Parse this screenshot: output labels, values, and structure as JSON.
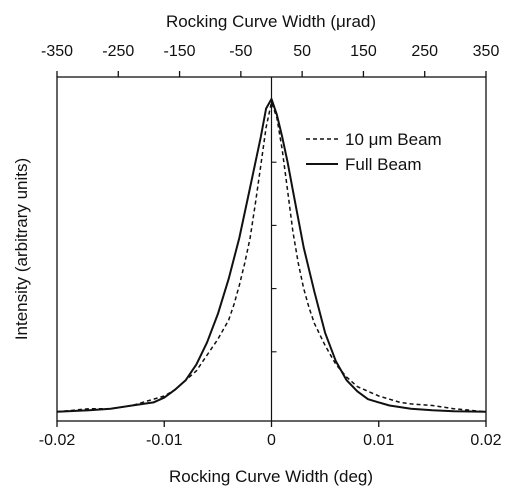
{
  "chart_data": {
    "type": "line",
    "title": "",
    "xlabel": "Rocking Curve Width (deg)",
    "ylabel": "Intensity (arbitrary units)",
    "x2label": "Rocking Curve Width (μrad)",
    "xlim": [
      -0.02,
      0.02
    ],
    "ylim": [
      0,
      1
    ],
    "x2lim": [
      -350,
      350
    ],
    "xticks": [
      "-0.02",
      "-0.01",
      "0",
      "0.01",
      "0.02"
    ],
    "x2ticks": [
      "-350",
      "-250",
      "-150",
      "-50",
      "50",
      "150",
      "250",
      "350"
    ],
    "grid": false,
    "legend_position": "top-right",
    "series": [
      {
        "name": "10 μm Beam",
        "style": "dashed",
        "x": [
          -0.02,
          -0.017,
          -0.015,
          -0.013,
          -0.011,
          -0.01,
          -0.009,
          -0.008,
          -0.007,
          -0.006,
          -0.005,
          -0.0045,
          -0.004,
          -0.0035,
          -0.003,
          -0.0025,
          -0.002,
          -0.0015,
          -0.001,
          -0.0005,
          0,
          0.0005,
          0.001,
          0.0015,
          0.002,
          0.0025,
          0.003,
          0.0035,
          0.004,
          0.005,
          0.006,
          0.007,
          0.008,
          0.009,
          0.01,
          0.011,
          0.012,
          0.013,
          0.015,
          0.017,
          0.02
        ],
        "y": [
          0.01,
          0.02,
          0.02,
          0.03,
          0.05,
          0.06,
          0.08,
          0.11,
          0.14,
          0.19,
          0.24,
          0.27,
          0.3,
          0.35,
          0.41,
          0.48,
          0.56,
          0.67,
          0.79,
          0.91,
          0.99,
          0.94,
          0.84,
          0.71,
          0.58,
          0.48,
          0.4,
          0.34,
          0.29,
          0.22,
          0.16,
          0.12,
          0.09,
          0.075,
          0.06,
          0.05,
          0.04,
          0.035,
          0.03,
          0.02,
          0.01
        ]
      },
      {
        "name": "Full Beam",
        "style": "solid",
        "x": [
          -0.02,
          -0.017,
          -0.015,
          -0.013,
          -0.011,
          -0.01,
          -0.009,
          -0.008,
          -0.007,
          -0.006,
          -0.005,
          -0.004,
          -0.003,
          -0.002,
          -0.001,
          -0.0005,
          0,
          0.0005,
          0.001,
          0.0015,
          0.002,
          0.0025,
          0.003,
          0.004,
          0.005,
          0.006,
          0.007,
          0.008,
          0.009,
          0.01,
          0.011,
          0.012,
          0.013,
          0.015,
          0.017,
          0.02
        ],
        "y": [
          0.01,
          0.015,
          0.02,
          0.03,
          0.04,
          0.055,
          0.08,
          0.11,
          0.16,
          0.23,
          0.32,
          0.43,
          0.56,
          0.72,
          0.88,
          0.97,
          1.0,
          0.95,
          0.88,
          0.8,
          0.71,
          0.62,
          0.53,
          0.39,
          0.26,
          0.17,
          0.11,
          0.075,
          0.05,
          0.04,
          0.03,
          0.025,
          0.02,
          0.015,
          0.012,
          0.01
        ]
      }
    ]
  }
}
